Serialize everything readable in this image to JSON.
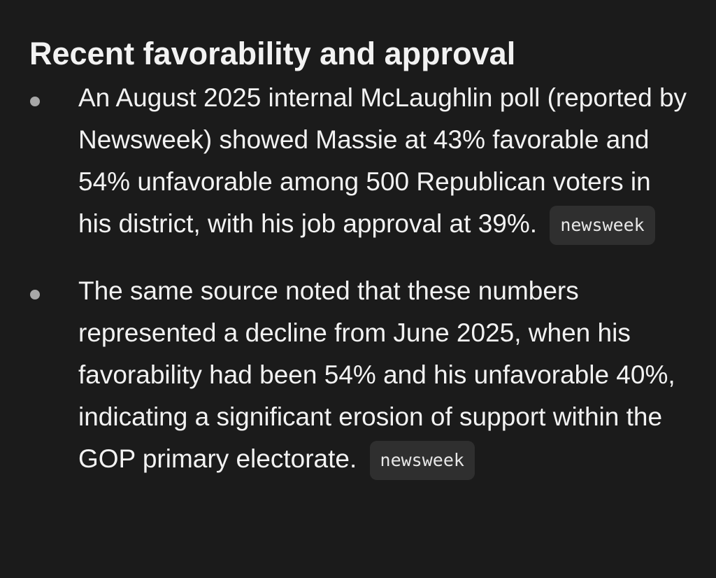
{
  "section": {
    "title": "Recent favorability and approval"
  },
  "bullets": [
    {
      "text": "An August 2025 internal McLaughlin poll (reported by Newsweek) showed Massie at 43% favorable and 54% unfavorable among 500 Republican voters in his district, with his job approval at 39%.",
      "source": "newsweek"
    },
    {
      "text": "The same source noted that these numbers represented a decline from June 2025, when his favorability had been 54% and his unfavorable 40%, indicating a significant erosion of support within the GOP primary electorate.",
      "source": "newsweek"
    }
  ]
}
